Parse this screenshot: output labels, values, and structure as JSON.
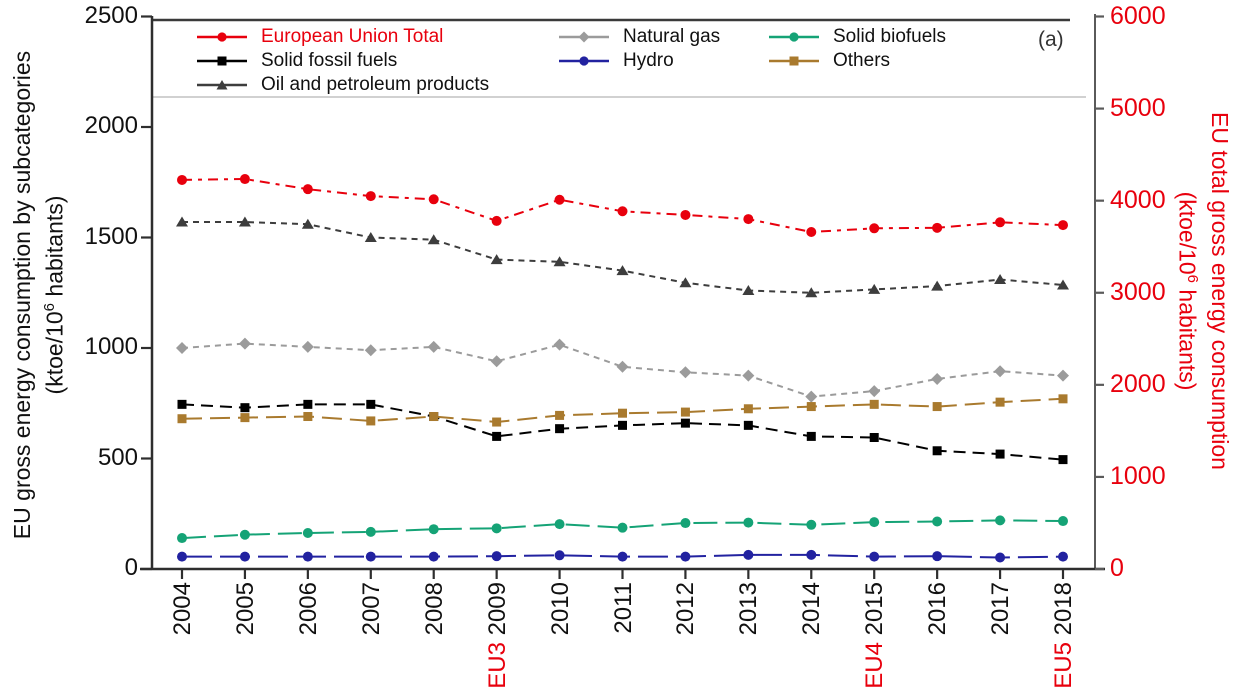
{
  "panel_label": "(a)",
  "left_axis": {
    "title": "EU gross energy consumption by subcategories",
    "unit_prefix": "(ktoe/10",
    "unit_exp": "6",
    "unit_suffix": " habitants)",
    "ticks": [
      0,
      500,
      1000,
      1500,
      2000,
      2500
    ],
    "range": [
      0,
      2500
    ],
    "color": "#111111"
  },
  "right_axis": {
    "title": "EU total gross energy consumption",
    "unit_prefix": "(ktoe/10",
    "unit_exp": "6",
    "unit_suffix": " habitants)",
    "ticks": [
      0,
      1000,
      2000,
      3000,
      4000,
      5000,
      6000
    ],
    "range": [
      0,
      6000
    ],
    "color": "#e8000d"
  },
  "x_axis": {
    "years": [
      2004,
      2005,
      2006,
      2007,
      2008,
      2009,
      2010,
      2011,
      2012,
      2013,
      2014,
      2015,
      2016,
      2017,
      2018
    ],
    "red_prefixes": {
      "2009": "EU3",
      "2015": "EU4",
      "2018": "EU5"
    },
    "red_color": "#e8000d"
  },
  "chart_data": {
    "type": "line",
    "x": [
      2004,
      2005,
      2006,
      2007,
      2008,
      2009,
      2010,
      2011,
      2012,
      2013,
      2014,
      2015,
      2016,
      2017,
      2018
    ],
    "xlabel": "",
    "ylabel_left": "EU gross energy consumption by subcategories (ktoe/10^6 habitants)",
    "ylabel_right": "EU total gross energy consumption (ktoe/10^6 habitants)",
    "ylim_left": [
      0,
      2500
    ],
    "ylim_right": [
      0,
      6000
    ],
    "grid": false,
    "legend_position": "top",
    "series": [
      {
        "name": "European Union Total",
        "axis": "right",
        "color": "#e8000d",
        "marker": "circle",
        "dash": "10 6 4 6",
        "label_red": true,
        "values": [
          4225,
          4235,
          4125,
          4050,
          4015,
          3780,
          4010,
          3885,
          3845,
          3800,
          3660,
          3700,
          3705,
          3765,
          3735
        ]
      },
      {
        "name": "Solid fossil fuels",
        "axis": "left",
        "color": "#000000",
        "marker": "square",
        "dash": "12 7",
        "label_red": false,
        "values": [
          745,
          730,
          745,
          745,
          690,
          600,
          635,
          650,
          660,
          650,
          600,
          595,
          535,
          520,
          495
        ]
      },
      {
        "name": "Oil and petroleum products",
        "axis": "left",
        "color": "#3d3d3d",
        "marker": "triangle",
        "dash": "6 5",
        "label_red": false,
        "values": [
          1570,
          1570,
          1560,
          1500,
          1490,
          1400,
          1390,
          1350,
          1295,
          1260,
          1250,
          1265,
          1280,
          1310,
          1285
        ]
      },
      {
        "name": "Natural gas",
        "axis": "left",
        "color": "#9b9b9b",
        "marker": "diamond",
        "dash": "6 5",
        "label_red": false,
        "values": [
          1000,
          1020,
          1005,
          990,
          1005,
          940,
          1015,
          915,
          890,
          875,
          780,
          805,
          860,
          895,
          875
        ]
      },
      {
        "name": "Hydro",
        "axis": "left",
        "color": "#2222a0",
        "marker": "circle",
        "dash": "30 8",
        "label_red": false,
        "values": [
          56,
          56,
          56,
          56,
          56,
          58,
          62,
          56,
          56,
          64,
          64,
          56,
          58,
          52,
          56
        ]
      },
      {
        "name": "Solid biofuels",
        "axis": "left",
        "color": "#15a376",
        "marker": "circle",
        "dash": "24 8",
        "label_red": false,
        "values": [
          140,
          155,
          163,
          168,
          180,
          184,
          203,
          187,
          208,
          210,
          200,
          212,
          215,
          220,
          217
        ]
      },
      {
        "name": "Others",
        "axis": "left",
        "color": "#a97a2e",
        "marker": "square",
        "dash": "20 8",
        "label_red": false,
        "values": [
          680,
          685,
          690,
          670,
          690,
          665,
          695,
          705,
          710,
          725,
          735,
          745,
          735,
          755,
          770
        ]
      }
    ]
  },
  "legend": {
    "columns": [
      [
        0,
        1,
        2
      ],
      [
        3,
        4
      ],
      [
        5,
        6
      ]
    ]
  }
}
